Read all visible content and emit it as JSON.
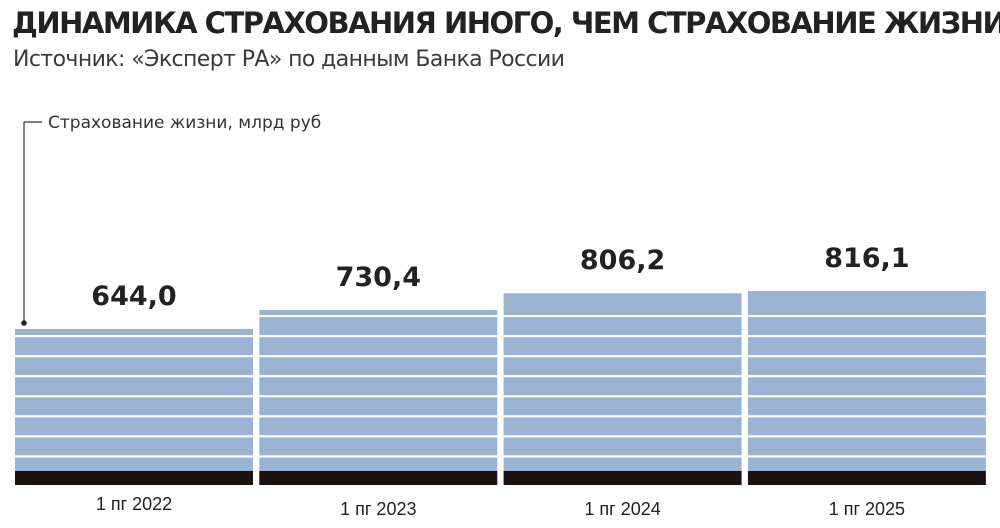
{
  "title": "ДИНАМИКА СТРАХОВАНИЯ ИНОГО, ЧЕМ СТРАХОВАНИЕ ЖИЗНИ",
  "subtitle": "Источник: «Эксперт РА» по данным Банка России",
  "colors": {
    "bar": "#9bb3d2",
    "stripe": "#ffffff",
    "base": "#1a120f",
    "text": "#222222"
  },
  "chart_data": {
    "type": "bar",
    "categories": [
      "1 пг 2022",
      "1 пг 2023",
      "1 пг 2024",
      "1 пг 2025"
    ],
    "values": [
      644.0,
      730.4,
      806.2,
      816.1
    ],
    "value_labels": [
      "644,0",
      "730,4",
      "806,2",
      "816,1"
    ],
    "annotation": "Страхование жизни, млрд руб",
    "title": "ДИНАМИКА СТРАХОВАНИЯ ИНОГО, ЧЕМ СТРАХОВАНИЕ ЖИЗНИ",
    "xlabel": "",
    "ylabel": "",
    "grid": false,
    "legend": "none"
  }
}
